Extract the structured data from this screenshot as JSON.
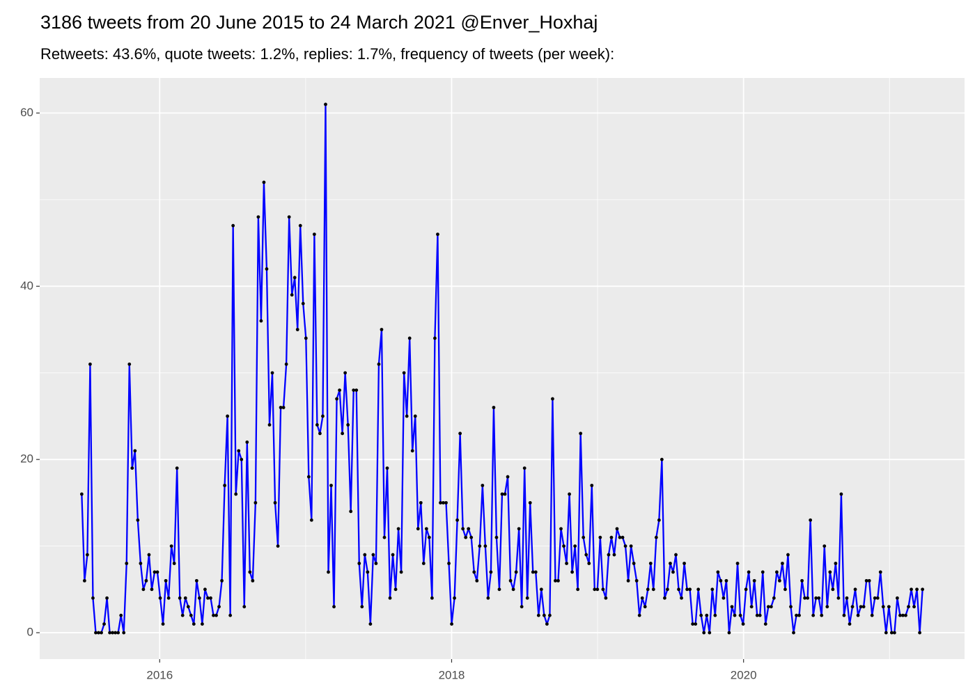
{
  "chart_data": {
    "type": "line",
    "title": "3186 tweets from 20 June 2015 to 24 March 2021 @Enver_Hoxhaj",
    "subtitle": "Retweets: 43.6%, quote tweets: 1.2%, replies: 1.7%, frequency of tweets (per week):",
    "x": [
      2015.466,
      2015.4852,
      2015.5044,
      2015.5236,
      2015.5428,
      2015.562,
      2015.5812,
      2015.6004,
      2015.6196,
      2015.6388,
      2015.658,
      2015.6772,
      2015.6964,
      2015.7156,
      2015.7348,
      2015.754,
      2015.7732,
      2015.7924,
      2015.8116,
      2015.8308,
      2015.85,
      2015.8692,
      2015.8884,
      2015.9076,
      2015.9268,
      2015.946,
      2015.9652,
      2015.9844,
      2016.0036,
      2016.0228,
      2016.042,
      2016.0612,
      2016.0804,
      2016.0996,
      2016.1188,
      2016.138,
      2016.1572,
      2016.1764,
      2016.1956,
      2016.2148,
      2016.234,
      2016.2532,
      2016.2724,
      2016.2916,
      2016.3108,
      2016.33,
      2016.3492,
      2016.3684,
      2016.3876,
      2016.4068,
      2016.426,
      2016.4452,
      2016.4644,
      2016.4836,
      2016.5028,
      2016.522,
      2016.5412,
      2016.5604,
      2016.5796,
      2016.5988,
      2016.618,
      2016.6372,
      2016.6564,
      2016.6756,
      2016.6948,
      2016.714,
      2016.7332,
      2016.7524,
      2016.7716,
      2016.7908,
      2016.81,
      2016.8292,
      2016.8484,
      2016.8676,
      2016.8868,
      2016.906,
      2016.9252,
      2016.9444,
      2016.9636,
      2016.9828,
      2017.002,
      2017.0212,
      2017.0404,
      2017.0596,
      2017.0788,
      2017.098,
      2017.1172,
      2017.1364,
      2017.1556,
      2017.1748,
      2017.194,
      2017.2132,
      2017.2324,
      2017.2516,
      2017.2708,
      2017.29,
      2017.3092,
      2017.3284,
      2017.3476,
      2017.3668,
      2017.386,
      2017.4052,
      2017.4244,
      2017.4436,
      2017.4628,
      2017.482,
      2017.5012,
      2017.5204,
      2017.5396,
      2017.5588,
      2017.578,
      2017.5972,
      2017.6164,
      2017.6356,
      2017.6548,
      2017.674,
      2017.6932,
      2017.7124,
      2017.7316,
      2017.7508,
      2017.77,
      2017.7892,
      2017.8084,
      2017.8276,
      2017.8468,
      2017.866,
      2017.8852,
      2017.9044,
      2017.9236,
      2017.9428,
      2017.962,
      2017.9812,
      2018.0004,
      2018.0196,
      2018.0388,
      2018.058,
      2018.0772,
      2018.0964,
      2018.1156,
      2018.1348,
      2018.154,
      2018.1732,
      2018.1924,
      2018.2116,
      2018.2308,
      2018.25,
      2018.2692,
      2018.2884,
      2018.3076,
      2018.3268,
      2018.346,
      2018.3652,
      2018.3844,
      2018.4036,
      2018.4228,
      2018.442,
      2018.4612,
      2018.4804,
      2018.4996,
      2018.5188,
      2018.538,
      2018.5572,
      2018.5764,
      2018.5956,
      2018.6148,
      2018.634,
      2018.6532,
      2018.6724,
      2018.6916,
      2018.7108,
      2018.73,
      2018.7492,
      2018.7684,
      2018.7876,
      2018.8068,
      2018.826,
      2018.8452,
      2018.8644,
      2018.8836,
      2018.9028,
      2018.922,
      2018.9412,
      2018.9604,
      2018.9796,
      2018.9988,
      2019.018,
      2019.0372,
      2019.0564,
      2019.0756,
      2019.0948,
      2019.114,
      2019.1332,
      2019.1524,
      2019.1716,
      2019.1908,
      2019.21,
      2019.2292,
      2019.2484,
      2019.2676,
      2019.2868,
      2019.306,
      2019.3252,
      2019.3444,
      2019.3636,
      2019.3828,
      2019.402,
      2019.4212,
      2019.4404,
      2019.4596,
      2019.4788,
      2019.498,
      2019.5172,
      2019.5364,
      2019.5556,
      2019.5748,
      2019.594,
      2019.6132,
      2019.6324,
      2019.6516,
      2019.6708,
      2019.69,
      2019.7092,
      2019.7284,
      2019.7476,
      2019.7668,
      2019.786,
      2019.8052,
      2019.8244,
      2019.8436,
      2019.8628,
      2019.882,
      2019.9012,
      2019.9204,
      2019.9396,
      2019.9588,
      2019.978,
      2019.9972,
      2020.0164,
      2020.0356,
      2020.0548,
      2020.074,
      2020.0932,
      2020.1124,
      2020.1316,
      2020.1508,
      2020.17,
      2020.1892,
      2020.2084,
      2020.2276,
      2020.2468,
      2020.266,
      2020.2852,
      2020.3044,
      2020.3236,
      2020.3428,
      2020.362,
      2020.3812,
      2020.4004,
      2020.4196,
      2020.4388,
      2020.458,
      2020.4772,
      2020.4964,
      2020.5156,
      2020.5348,
      2020.554,
      2020.5732,
      2020.5924,
      2020.6116,
      2020.6308,
      2020.65,
      2020.6692,
      2020.6884,
      2020.7076,
      2020.7268,
      2020.746,
      2020.7652,
      2020.7844,
      2020.8036,
      2020.8228,
      2020.842,
      2020.8612,
      2020.8804,
      2020.8996,
      2020.9188,
      2020.938,
      2020.9572,
      2020.9764,
      2020.9956,
      2021.0148,
      2021.034,
      2021.0532,
      2021.0724,
      2021.0916,
      2021.1108,
      2021.13,
      2021.1492,
      2021.1684,
      2021.1876,
      2021.2068,
      2021.226
    ],
    "series": [
      {
        "color": "#0000ff",
        "point_color": "#000000",
        "values": [
          16,
          6,
          9,
          31,
          4,
          0,
          0,
          0,
          1,
          4,
          0,
          0,
          0,
          0,
          2,
          0,
          8,
          31,
          19,
          21,
          13,
          8,
          5,
          6,
          9,
          5,
          7,
          7,
          4,
          1,
          6,
          4,
          10,
          8,
          19,
          4,
          2,
          4,
          3,
          2,
          1,
          6,
          4,
          1,
          5,
          4,
          4,
          2,
          2,
          3,
          6,
          17,
          25,
          2,
          47,
          16,
          21,
          20,
          3,
          22,
          7,
          6,
          15,
          48,
          36,
          52,
          42,
          24,
          30,
          15,
          10,
          26,
          26,
          31,
          48,
          39,
          41,
          35,
          47,
          38,
          34,
          18,
          13,
          46,
          24,
          23,
          25,
          61,
          7,
          17,
          3,
          27,
          28,
          23,
          30,
          24,
          14,
          28,
          28,
          8,
          3,
          9,
          7,
          1,
          9,
          8,
          31,
          35,
          11,
          19,
          4,
          9,
          5,
          12,
          7,
          30,
          25,
          34,
          21,
          25,
          12,
          15,
          8,
          12,
          11,
          4,
          34,
          46,
          15,
          15,
          15,
          8,
          1,
          4,
          13,
          23,
          12,
          11,
          12,
          11,
          7,
          6,
          10,
          17,
          10,
          4,
          7,
          26,
          11,
          5,
          16,
          16,
          18,
          6,
          5,
          7,
          12,
          3,
          19,
          4,
          15,
          7,
          7,
          2,
          5,
          2,
          1,
          2,
          27,
          6,
          6,
          12,
          10,
          8,
          16,
          7,
          10,
          5,
          23,
          11,
          9,
          8,
          17,
          5,
          5,
          11,
          5,
          4,
          9,
          11,
          9,
          12,
          11,
          11,
          10,
          6,
          10,
          8,
          6,
          2,
          4,
          3,
          5,
          8,
          5,
          11,
          13,
          20,
          4,
          5,
          8,
          7,
          9,
          5,
          4,
          8,
          5,
          5,
          1,
          1,
          5,
          2,
          0,
          2,
          0,
          5,
          2,
          7,
          6,
          4,
          6,
          0,
          3,
          2,
          8,
          2,
          1,
          5,
          7,
          3,
          6,
          2,
          2,
          7,
          1,
          3,
          3,
          4,
          7,
          6,
          8,
          5,
          9,
          3,
          0,
          2,
          2,
          6,
          4,
          4,
          13,
          2,
          4,
          4,
          2,
          10,
          3,
          7,
          5,
          8,
          4,
          16,
          2,
          4,
          1,
          3,
          5,
          2,
          3,
          3,
          6,
          6,
          2,
          4,
          4,
          7,
          3,
          0,
          3,
          0,
          0,
          4,
          2,
          2,
          2,
          3,
          5,
          3,
          5,
          0,
          5
        ]
      }
    ],
    "xlim": [
      2015.178,
      2021.514
    ],
    "xticks": [
      2016,
      2018,
      2020
    ],
    "x_minor_ticks": [
      2017,
      2019,
      2021
    ],
    "ylim": [
      -3.05,
      64.05
    ],
    "yticks": [
      0,
      20,
      40,
      60
    ],
    "y_minor_ticks": [
      10,
      30,
      50
    ],
    "grid": true
  }
}
